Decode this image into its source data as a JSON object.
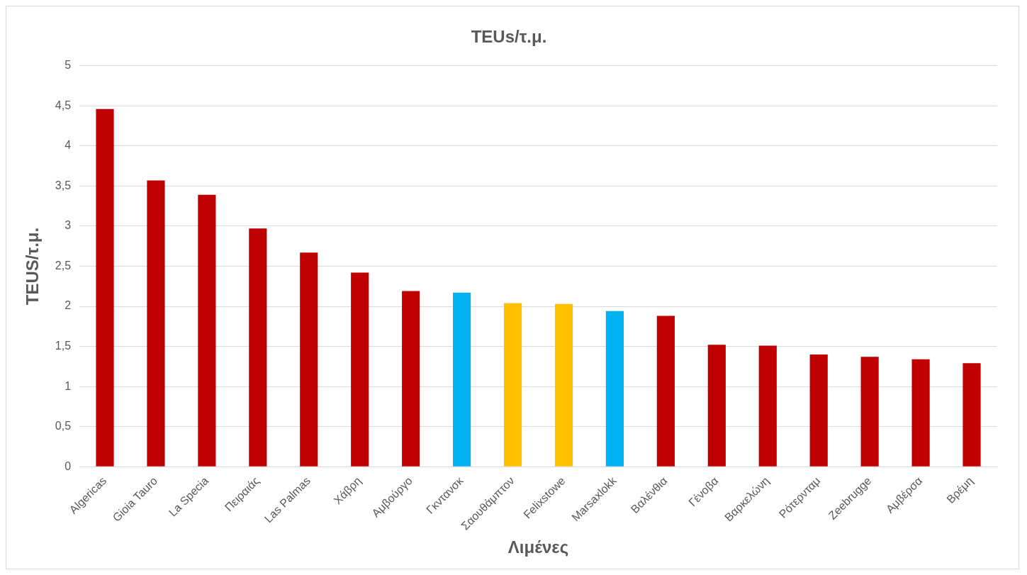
{
  "chart_data": {
    "type": "bar",
    "title": "TEUs/τ.μ.",
    "xlabel": "Λιμένες",
    "ylabel": "TEUS/τ.μ.",
    "categories": [
      "Algericas",
      "Gioia Tauro",
      "La Specia",
      "Πειραιάς",
      "Las Palmas",
      "Χάβρη",
      "Αμβούργο",
      "Γκντανσκ",
      "Σαουθάμπτον",
      "Felixstowe",
      "Marsaxlokk",
      "Βαλένθια",
      "Γένοβα",
      "Βαρκελώνη",
      "Ρότερνταμ",
      "Zeebrugge",
      "Αμβέρσα",
      "Βρέμη"
    ],
    "values": [
      4.46,
      3.57,
      3.39,
      2.97,
      2.67,
      2.42,
      2.19,
      2.17,
      2.04,
      2.03,
      1.94,
      1.88,
      1.52,
      1.51,
      1.4,
      1.37,
      1.34,
      1.29
    ],
    "colors": [
      "#c00000",
      "#c00000",
      "#c00000",
      "#c00000",
      "#c00000",
      "#c00000",
      "#c00000",
      "#00b0f0",
      "#ffc000",
      "#ffc000",
      "#00b0f0",
      "#c00000",
      "#c00000",
      "#c00000",
      "#c00000",
      "#c00000",
      "#c00000",
      "#c00000"
    ],
    "ylim": [
      0,
      5
    ],
    "yticks": [
      0,
      {
        "value": 0.5,
        "label": "0,5"
      },
      1,
      {
        "value": 1.5,
        "label": "1,5"
      },
      2,
      {
        "value": 2.5,
        "label": "2,5"
      },
      3,
      {
        "value": 3.5,
        "label": "3,5"
      },
      4,
      {
        "value": 4.5,
        "label": "4,5"
      },
      5
    ],
    "grid": "y",
    "legend": false
  }
}
